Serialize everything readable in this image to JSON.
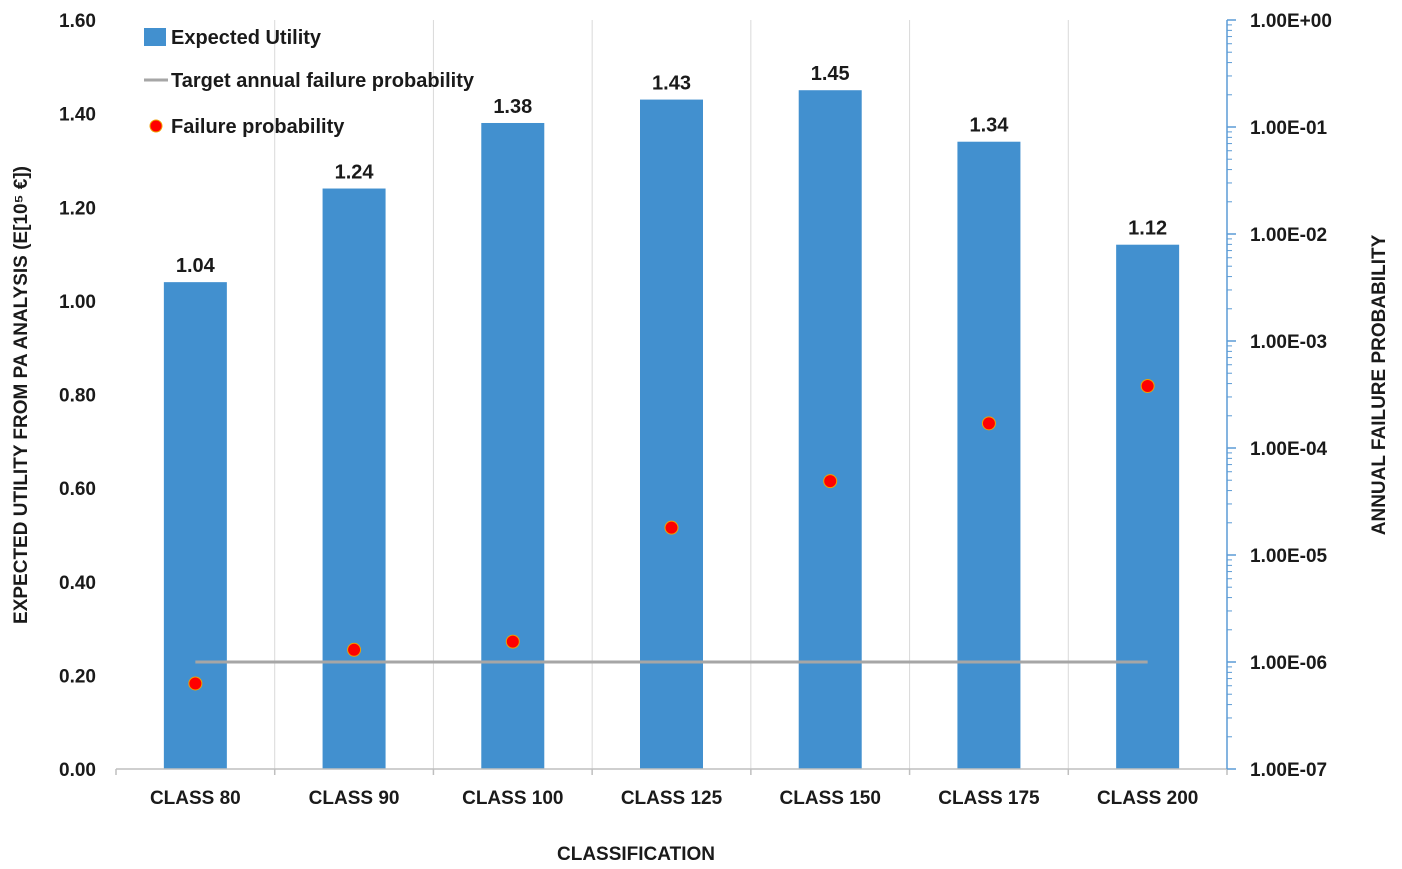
{
  "chart_data": {
    "type": "bar",
    "categories": [
      "CLASS 80",
      "CLASS 90",
      "CLASS 100",
      "CLASS 125",
      "CLASS 150",
      "CLASS 175",
      "CLASS 200"
    ],
    "series": [
      {
        "name": "Expected Utility",
        "type": "bar",
        "axis": "left",
        "values": [
          1.04,
          1.24,
          1.38,
          1.43,
          1.45,
          1.34,
          1.12
        ],
        "value_labels": [
          "1.04",
          "1.24",
          "1.38",
          "1.43",
          "1.45",
          "1.34",
          "1.12"
        ],
        "color": "#4290cf"
      },
      {
        "name": "Target annual failure probability",
        "type": "line",
        "axis": "right",
        "values": [
          1e-06,
          1e-06,
          1e-06,
          1e-06,
          1e-06,
          1e-06,
          1e-06
        ],
        "color": "#a6a6a6"
      },
      {
        "name": "Failure probability",
        "type": "scatter",
        "axis": "right",
        "values": [
          6.3e-07,
          1.3e-06,
          1.55e-06,
          1.8e-05,
          4.9e-05,
          0.00017,
          0.00038
        ],
        "color": "#ff0000"
      }
    ],
    "xlabel": "CLASSIFICATION",
    "ylabel": "EXPECTED UTILITY FROM PA ANALYSIS (E[10⁵ €])",
    "y2label": "ANNUAL  FAILURE PROBABILITY",
    "ylim": [
      0,
      1.6
    ],
    "y2lim": [
      1e-07,
      1
    ],
    "y2scale": "log",
    "yticks": [
      "0.00",
      "0.20",
      "0.40",
      "0.60",
      "0.80",
      "1.00",
      "1.20",
      "1.40",
      "1.60"
    ],
    "y2ticks": [
      "1.00E-07",
      "1.00E-06",
      "1.00E-05",
      "1.00E-04",
      "1.00E-03",
      "1.00E-02",
      "1.00E-01",
      "1.00E+00"
    ],
    "grid": "vertical",
    "legend": "top-left"
  }
}
